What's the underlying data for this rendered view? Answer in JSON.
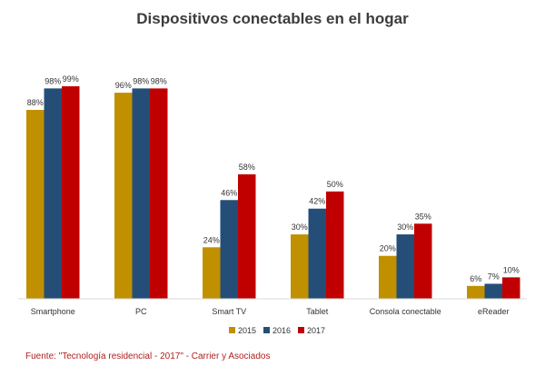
{
  "chart_data": {
    "type": "bar",
    "title": "Dispositivos conectables en el hogar",
    "categories": [
      "Smartphone",
      "PC",
      "Smart TV",
      "Tablet",
      "Consola conectable",
      "eReader"
    ],
    "series": [
      {
        "name": "2015",
        "color": "#c09000",
        "values": [
          88,
          96,
          24,
          30,
          20,
          6
        ]
      },
      {
        "name": "2016",
        "color": "#244e78",
        "values": [
          98,
          98,
          46,
          42,
          30,
          7
        ]
      },
      {
        "name": "2017",
        "color": "#c00000",
        "values": [
          99,
          98,
          58,
          50,
          35,
          10
        ]
      }
    ],
    "value_suffix": "%",
    "ylim": [
      0,
      100
    ],
    "grid": false,
    "legend_position": "bottom"
  },
  "source": "Fuente: \"Tecnología residencial - 2017\" - Carrier y Asociados"
}
